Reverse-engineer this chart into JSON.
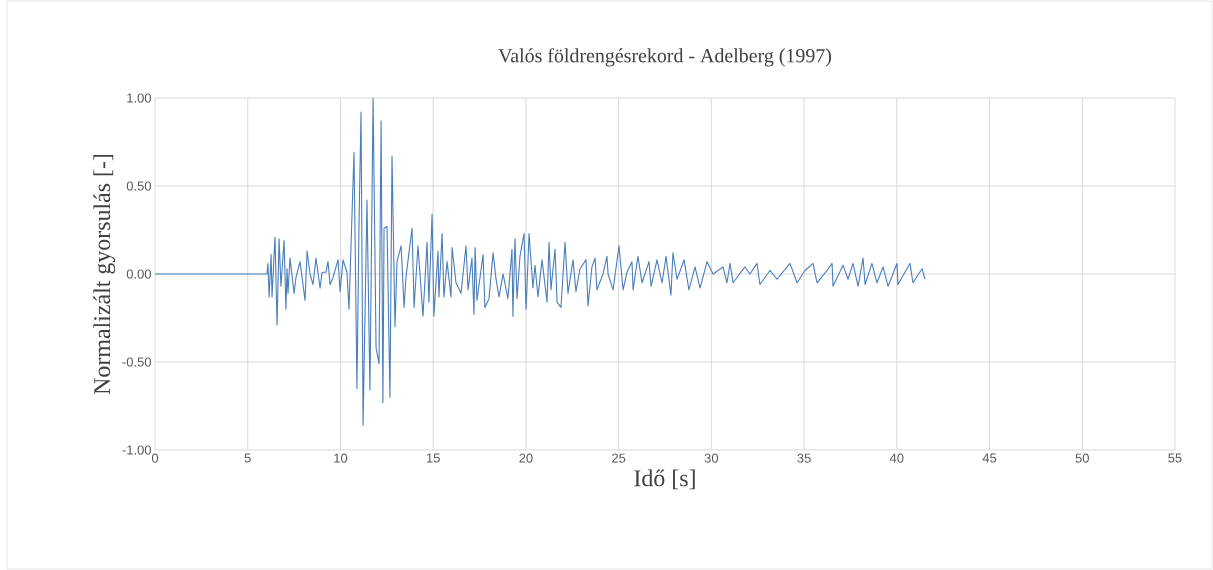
{
  "chart_data": {
    "type": "line",
    "title": "Valós földrengésrekord - Adelberg (1997)",
    "xlabel": "Idő [s]",
    "ylabel": "Normalizált gyorsulás [-]",
    "xlim": [
      0,
      55
    ],
    "xticks": [
      0,
      5,
      10,
      15,
      20,
      25,
      30,
      35,
      40,
      45,
      50,
      55
    ],
    "ylim": [
      -1,
      1
    ],
    "yticks": [
      {
        "value": -1,
        "label": "-1.00"
      },
      {
        "value": -0.5,
        "label": "-0.50"
      },
      {
        "value": 0,
        "label": "0.00"
      },
      {
        "value": 0.5,
        "label": "0.50"
      },
      {
        "value": 1,
        "label": "1.00"
      }
    ],
    "grid": true,
    "legend": false,
    "marker": "none",
    "line_style": "solid",
    "series": [
      {
        "color": "#4a7ebb",
        "x": [
          0,
          6.0,
          6.04,
          6.09,
          6.15,
          6.26,
          6.31,
          6.47,
          6.58,
          6.69,
          6.79,
          6.96,
          7.06,
          7.12,
          7.17,
          7.28,
          7.5,
          7.6,
          7.82,
          8.09,
          8.2,
          8.36,
          8.52,
          8.68,
          8.9,
          9.01,
          9.22,
          9.33,
          9.44,
          9.6,
          9.87,
          9.98,
          10.14,
          10.35,
          10.46,
          10.73,
          10.89,
          11.0,
          11.11,
          11.22,
          11.43,
          11.59,
          11.76,
          11.92,
          12.08,
          12.19,
          12.29,
          12.35,
          12.51,
          12.67,
          12.78,
          12.94,
          13.05,
          13.27,
          13.43,
          13.53,
          13.86,
          13.97,
          14.18,
          14.45,
          14.67,
          14.77,
          14.94,
          15.04,
          15.26,
          15.31,
          15.48,
          15.58,
          15.75,
          15.96,
          16.02,
          16.23,
          16.5,
          16.77,
          16.88,
          17.09,
          17.2,
          17.26,
          17.36,
          17.69,
          17.79,
          18.01,
          18.23,
          18.39,
          18.55,
          18.77,
          19.03,
          19.25,
          19.3,
          19.41,
          19.52,
          19.68,
          19.9,
          20.01,
          20.17,
          20.38,
          20.49,
          20.65,
          20.87,
          21.14,
          21.25,
          21.35,
          21.57,
          21.68,
          21.89,
          22.11,
          22.27,
          22.54,
          22.7,
          22.92,
          23.24,
          23.35,
          23.56,
          23.73,
          23.83,
          24.16,
          24.37,
          24.43,
          24.7,
          25.02,
          25.24,
          25.45,
          25.72,
          25.78,
          26.04,
          26.26,
          26.64,
          26.75,
          27.07,
          27.34,
          27.56,
          27.82,
          27.93,
          28.15,
          28.53,
          28.79,
          29.12,
          29.39,
          29.77,
          30.09,
          30.63,
          30.84,
          31.01,
          31.17,
          31.81,
          32.08,
          32.46,
          32.62,
          33.16,
          33.54,
          34.24,
          34.62,
          35.05,
          35.48,
          35.7,
          36.24,
          36.51,
          36.56,
          37.1,
          37.37,
          37.64,
          37.91,
          38.18,
          38.29,
          38.66,
          38.93,
          39.26,
          39.53,
          40.01,
          40.06,
          40.71,
          40.87,
          41.36,
          41.52
        ],
        "values": [
          0,
          0,
          0,
          0.06,
          -0.13,
          0.11,
          -0.13,
          0.21,
          -0.29,
          0.2,
          -0.07,
          0.19,
          -0.2,
          0.03,
          -0.11,
          0.09,
          -0.11,
          -0.02,
          0.07,
          -0.15,
          0.13,
          0,
          -0.06,
          0.09,
          -0.08,
          0.01,
          0.01,
          0.07,
          -0.06,
          -0.02,
          0.08,
          -0.1,
          0.08,
          0.01,
          -0.2,
          0.69,
          -0.65,
          0.28,
          0.92,
          -0.86,
          0.42,
          -0.66,
          1.0,
          -0.42,
          -0.51,
          0.87,
          -0.73,
          0.26,
          0.27,
          -0.7,
          0.67,
          -0.3,
          0.07,
          0.16,
          -0.19,
          -0.02,
          0.26,
          -0.19,
          0.16,
          -0.24,
          0.18,
          -0.16,
          0.34,
          -0.24,
          0.13,
          -0.13,
          0.23,
          -0.13,
          0.07,
          -0.13,
          0.15,
          -0.05,
          -0.11,
          0.16,
          -0.09,
          0.09,
          -0.23,
          0.15,
          -0.15,
          0.11,
          -0.19,
          -0.14,
          0.12,
          -0.03,
          -0.13,
          0,
          -0.14,
          0.14,
          -0.24,
          0.2,
          -0.14,
          0.1,
          0.23,
          -0.2,
          0.23,
          -0.08,
          0.05,
          -0.13,
          0.08,
          -0.16,
          0.18,
          -0.09,
          0.14,
          -0.16,
          -0.19,
          0.18,
          -0.11,
          0.08,
          -0.1,
          0.03,
          0.08,
          -0.18,
          0.04,
          0.09,
          -0.09,
          0.0,
          0.1,
          0.0,
          -0.09,
          0.16,
          -0.09,
          0.01,
          0.07,
          -0.09,
          0.1,
          -0.05,
          0.07,
          -0.07,
          0.08,
          -0.05,
          0.1,
          -0.12,
          0.12,
          -0.03,
          0.08,
          -0.09,
          0.04,
          -0.08,
          0.07,
          0.0,
          0.04,
          -0.05,
          0.06,
          -0.05,
          0.04,
          0.0,
          0.06,
          -0.06,
          0.02,
          -0.03,
          0.06,
          -0.05,
          0.02,
          0.06,
          -0.05,
          0.02,
          0.06,
          -0.07,
          0.05,
          -0.03,
          0.06,
          -0.07,
          0.09,
          -0.06,
          0.06,
          -0.05,
          0.04,
          -0.07,
          0.06,
          -0.06,
          0.06,
          -0.05,
          0.03,
          -0.03
        ]
      }
    ]
  }
}
